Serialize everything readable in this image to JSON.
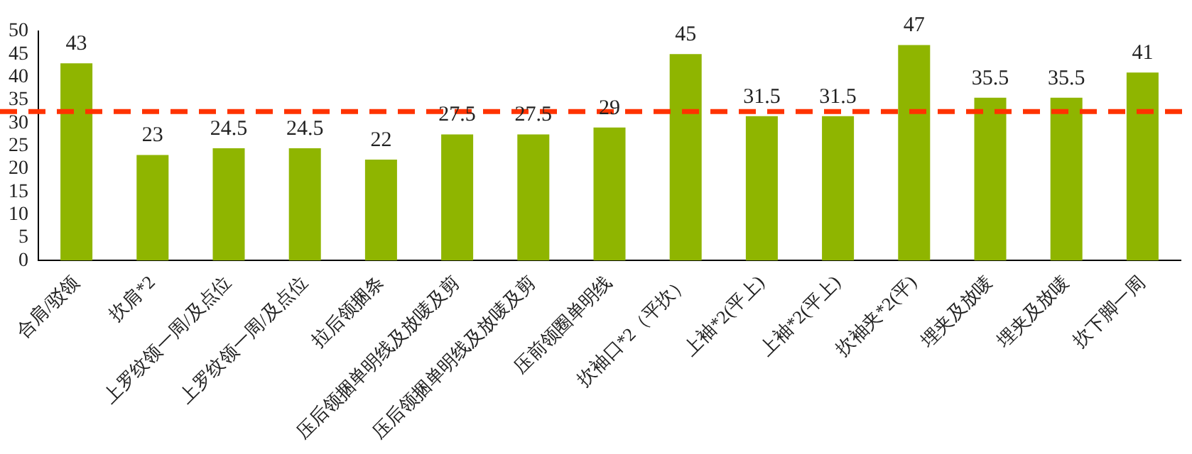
{
  "chart_data": {
    "type": "bar",
    "categories": [
      "合肩/驳领",
      "扻肩*2",
      "上罗纹领一周/及点位",
      "上罗纹领一周/及点位",
      "拉后领捆条",
      "压后领捆单明线及放唛及剪",
      "压后领捆单明线及放唛及剪",
      "压前领圈单明线",
      "扻袖口*2（平扻）",
      "上袖*2(平上)",
      "上袖*2(平上)",
      "扻袖夹*2(平)",
      "埋夹及放唛",
      "埋夹及放唛",
      "扻下脚一周"
    ],
    "values": [
      43,
      23,
      24.5,
      24.5,
      22,
      27.5,
      27.5,
      29,
      45,
      31.5,
      31.5,
      47,
      35.5,
      35.5,
      41
    ],
    "color": "#8fb500",
    "ylim": [
      0,
      50
    ],
    "yticks": [
      0,
      5,
      10,
      15,
      20,
      25,
      30,
      35,
      40,
      45,
      50
    ],
    "grid": false,
    "legend": false,
    "data_labels": true,
    "ref_lines": [
      {
        "axis": "y",
        "value": 32.5,
        "color": "#ff3300",
        "line_style": "dashed"
      }
    ]
  }
}
